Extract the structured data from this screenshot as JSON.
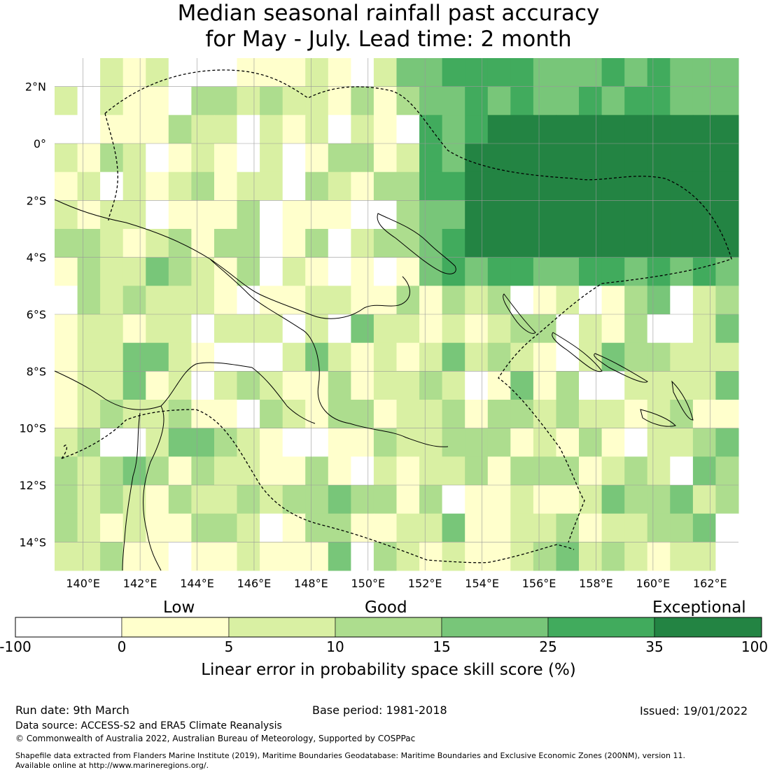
{
  "title": {
    "line1": "Median seasonal rainfall past accuracy",
    "line2": "for May - July. Lead time: 2 month"
  },
  "map": {
    "lat_labels": [
      "2°N",
      "0°",
      "2°S",
      "4°S",
      "6°S",
      "8°S",
      "10°S",
      "12°S",
      "14°S"
    ],
    "lon_labels": [
      "140°E",
      "142°E",
      "144°E",
      "146°E",
      "148°E",
      "150°E",
      "152°E",
      "154°E",
      "156°E",
      "158°E",
      "160°E",
      "162°E"
    ],
    "lat_values": [
      2,
      0,
      -2,
      -4,
      -6,
      -8,
      -10,
      -12,
      -14
    ],
    "lon_values": [
      140,
      142,
      144,
      146,
      148,
      150,
      152,
      154,
      156,
      158,
      160,
      162
    ],
    "extent": {
      "lon_min": 139,
      "lon_max": 163,
      "lat_min": -15,
      "lat_max": 3
    },
    "grid_cells_deg": 0.8
  },
  "legend": {
    "category_low": "Low",
    "category_good": "Good",
    "category_exceptional": "Exceptional",
    "bounds": [
      "-100",
      "0",
      "5",
      "10",
      "15",
      "25",
      "35",
      "100"
    ],
    "colors": [
      "#ffffff",
      "#ffffcc",
      "#d9f0a3",
      "#addd8e",
      "#78c679",
      "#41ab5d",
      "#238443"
    ],
    "axis_label": "Linear error in probability space skill score (%)"
  },
  "footer": {
    "run_date": "Run date: 9th March",
    "base_period": "Base period: 1981-2018",
    "issued": "Issued: 19/01/2022",
    "data_source": "Data source: ACCESS-S2 and ERA5 Climate Reanalysis",
    "copyright": "© Commonwealth of Australia 2022, Australian Bureau of Meteorology, Supported by COSPPac",
    "shapefile_line1": "Shapefile data extracted from Flanders Marine Institute (2019), Maritime Boundaries Geodatabase: Maritime Boundaries and Exclusive Economic Zones (200NM), version 11.",
    "shapefile_line2": "Available online at http://www.marineregions.org/."
  }
}
